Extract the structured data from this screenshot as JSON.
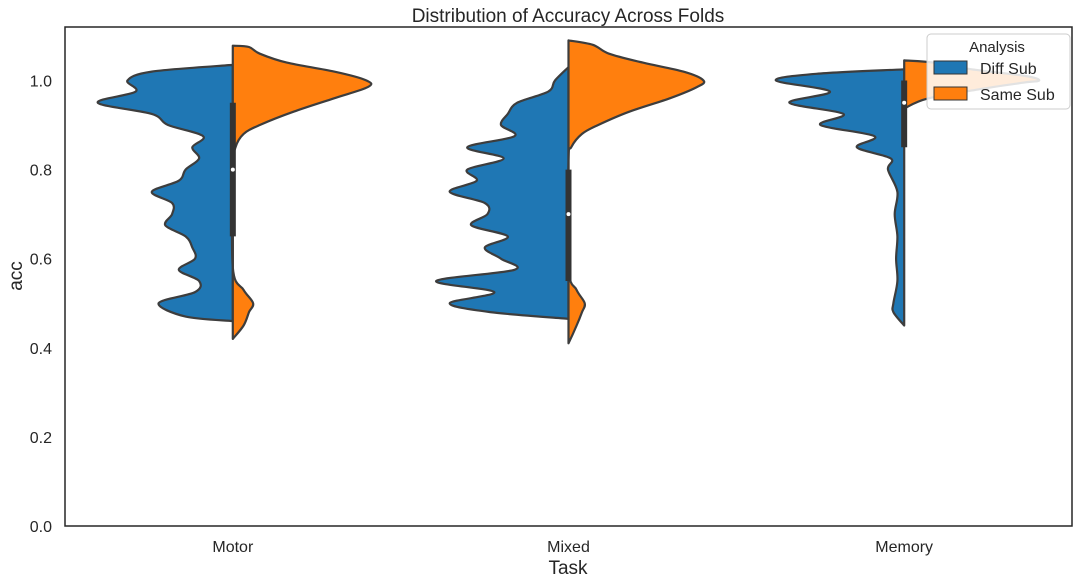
{
  "chart_data": {
    "type": "violin",
    "title": "Distribution of Accuracy Across Folds",
    "xlabel": "Task",
    "ylabel": "acc",
    "categories": [
      "Motor",
      "Mixed",
      "Memory"
    ],
    "ylim": [
      0.0,
      1.12
    ],
    "yticks": [
      0.0,
      0.2,
      0.4,
      0.6,
      0.8,
      1.0
    ],
    "grid": false,
    "legend": {
      "title": "Analysis",
      "placement": "top-right"
    },
    "split": true,
    "series": [
      {
        "name": "Diff Sub",
        "color": "#1f77b4",
        "side": "left",
        "quartiles": [
          {
            "q1": 0.65,
            "median": 0.8,
            "q3": 0.95
          },
          {
            "q1": 0.55,
            "median": 0.7,
            "q3": 0.8
          },
          {
            "q1": 0.85,
            "median": 0.95,
            "q3": 1.0
          }
        ],
        "density": [
          [
            [
              0.46,
              0.0
            ],
            [
              0.47,
              0.35
            ],
            [
              0.5,
              0.55
            ],
            [
              0.525,
              0.28
            ],
            [
              0.55,
              0.25
            ],
            [
              0.575,
              0.4
            ],
            [
              0.6,
              0.28
            ],
            [
              0.625,
              0.3
            ],
            [
              0.65,
              0.35
            ],
            [
              0.675,
              0.5
            ],
            [
              0.7,
              0.45
            ],
            [
              0.725,
              0.45
            ],
            [
              0.75,
              0.6
            ],
            [
              0.775,
              0.4
            ],
            [
              0.8,
              0.35
            ],
            [
              0.825,
              0.25
            ],
            [
              0.85,
              0.3
            ],
            [
              0.875,
              0.22
            ],
            [
              0.9,
              0.48
            ],
            [
              0.925,
              0.6
            ],
            [
              0.95,
              1.0
            ],
            [
              0.975,
              0.72
            ],
            [
              1.0,
              0.78
            ],
            [
              1.02,
              0.6
            ],
            [
              1.035,
              0.0
            ]
          ],
          [
            [
              0.465,
              0.0
            ],
            [
              0.48,
              0.58
            ],
            [
              0.5,
              0.88
            ],
            [
              0.525,
              0.55
            ],
            [
              0.55,
              0.98
            ],
            [
              0.575,
              0.4
            ],
            [
              0.6,
              0.5
            ],
            [
              0.625,
              0.62
            ],
            [
              0.65,
              0.45
            ],
            [
              0.675,
              0.72
            ],
            [
              0.7,
              0.6
            ],
            [
              0.725,
              0.62
            ],
            [
              0.75,
              0.88
            ],
            [
              0.775,
              0.68
            ],
            [
              0.8,
              0.75
            ],
            [
              0.825,
              0.48
            ],
            [
              0.85,
              0.75
            ],
            [
              0.875,
              0.4
            ],
            [
              0.9,
              0.5
            ],
            [
              0.925,
              0.45
            ],
            [
              0.95,
              0.38
            ],
            [
              0.975,
              0.15
            ],
            [
              1.0,
              0.1
            ],
            [
              1.03,
              0.0
            ]
          ],
          [
            [
              0.45,
              0.0
            ],
            [
              0.48,
              0.08
            ],
            [
              0.5,
              0.08
            ],
            [
              0.55,
              0.05
            ],
            [
              0.6,
              0.06
            ],
            [
              0.65,
              0.05
            ],
            [
              0.7,
              0.07
            ],
            [
              0.75,
              0.05
            ],
            [
              0.8,
              0.12
            ],
            [
              0.825,
              0.1
            ],
            [
              0.85,
              0.35
            ],
            [
              0.875,
              0.22
            ],
            [
              0.9,
              0.62
            ],
            [
              0.925,
              0.45
            ],
            [
              0.95,
              0.85
            ],
            [
              0.975,
              0.55
            ],
            [
              1.0,
              0.95
            ],
            [
              1.015,
              0.65
            ],
            [
              1.025,
              0.0
            ]
          ]
        ]
      },
      {
        "name": "Same Sub",
        "color": "#ff7f0e",
        "side": "right",
        "density": [
          [
            [
              0.42,
              0.0
            ],
            [
              0.45,
              0.08
            ],
            [
              0.48,
              0.12
            ],
            [
              0.5,
              0.15
            ],
            [
              0.53,
              0.08
            ],
            [
              0.58,
              0.0
            ],
            [
              0.8,
              0.0
            ],
            [
              0.85,
              0.02
            ],
            [
              0.88,
              0.08
            ],
            [
              0.9,
              0.2
            ],
            [
              0.93,
              0.45
            ],
            [
              0.96,
              0.75
            ],
            [
              0.985,
              1.0
            ],
            [
              1.0,
              0.99
            ],
            [
              1.02,
              0.75
            ],
            [
              1.04,
              0.4
            ],
            [
              1.06,
              0.2
            ],
            [
              1.075,
              0.12
            ],
            [
              1.078,
              0.0
            ]
          ],
          [
            [
              0.41,
              0.0
            ],
            [
              0.45,
              0.06
            ],
            [
              0.48,
              0.1
            ],
            [
              0.5,
              0.12
            ],
            [
              0.53,
              0.06
            ],
            [
              0.58,
              0.0
            ],
            [
              0.82,
              0.0
            ],
            [
              0.85,
              0.02
            ],
            [
              0.88,
              0.1
            ],
            [
              0.9,
              0.22
            ],
            [
              0.93,
              0.45
            ],
            [
              0.96,
              0.75
            ],
            [
              0.985,
              0.95
            ],
            [
              1.0,
              1.0
            ],
            [
              1.02,
              0.85
            ],
            [
              1.04,
              0.55
            ],
            [
              1.06,
              0.3
            ],
            [
              1.08,
              0.18
            ],
            [
              1.09,
              0.0
            ]
          ],
          [
            [
              0.93,
              0.0
            ],
            [
              0.94,
              0.02
            ],
            [
              0.96,
              0.18
            ],
            [
              0.98,
              0.55
            ],
            [
              0.995,
              0.88
            ],
            [
              1.0,
              1.0
            ],
            [
              1.01,
              0.9
            ],
            [
              1.025,
              0.5
            ],
            [
              1.04,
              0.22
            ],
            [
              1.045,
              0.0
            ]
          ]
        ]
      }
    ]
  }
}
